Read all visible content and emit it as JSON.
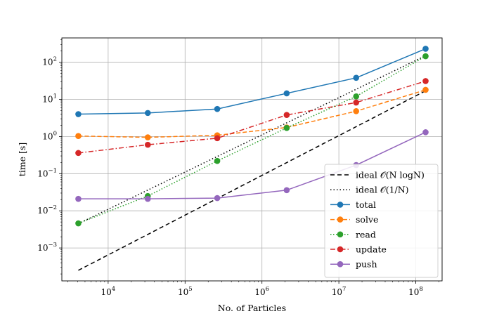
{
  "chart_data": {
    "type": "line",
    "title": "",
    "xlabel": "No. of Particles",
    "ylabel": "time [s]",
    "xscale": "log",
    "yscale": "log",
    "xlim": [
      2500,
      220000000
    ],
    "ylim": [
      0.00013,
      450
    ],
    "x_ticks": [
      {
        "value": 10000,
        "base": "10",
        "exp": "4"
      },
      {
        "value": 100000,
        "base": "10",
        "exp": "5"
      },
      {
        "value": 1000000,
        "base": "10",
        "exp": "6"
      },
      {
        "value": 10000000,
        "base": "10",
        "exp": "7"
      },
      {
        "value": 100000000,
        "base": "10",
        "exp": "8"
      }
    ],
    "y_ticks": [
      {
        "value": 0.001,
        "base": "10",
        "exp": "−3"
      },
      {
        "value": 0.01,
        "base": "10",
        "exp": "−2"
      },
      {
        "value": 0.1,
        "base": "10",
        "exp": "−1"
      },
      {
        "value": 1,
        "base": "10",
        "exp": "0"
      },
      {
        "value": 10,
        "base": "10",
        "exp": "1"
      },
      {
        "value": 100,
        "base": "10",
        "exp": "2"
      }
    ],
    "grid": true,
    "legend_position": "lower-right",
    "x": [
      4096,
      32768,
      262144,
      2097152,
      16777216,
      134217728
    ],
    "series": [
      {
        "name": "ideal 𝒪(N logN)",
        "color": "#000000",
        "dash": "6,4",
        "marker": false,
        "x": [
          4096,
          134217728
        ],
        "values": [
          0.00025,
          17
        ]
      },
      {
        "name": "ideal 𝒪(1/N)",
        "color": "#000000",
        "dash": "1.5,3",
        "marker": false,
        "x": [
          4096,
          134217728
        ],
        "values": [
          0.0045,
          150
        ]
      },
      {
        "name": "total",
        "color": "#1f77b4",
        "dash": "",
        "marker": true,
        "values": [
          4.0,
          4.3,
          5.5,
          14.5,
          38,
          230
        ]
      },
      {
        "name": "solve",
        "color": "#ff7f0e",
        "dash": "6,3",
        "marker": true,
        "values": [
          1.03,
          0.95,
          1.08,
          1.75,
          4.8,
          18
        ]
      },
      {
        "name": "read",
        "color": "#2ca02c",
        "dash": "1.5,2.5",
        "marker": true,
        "values": [
          0.0046,
          0.025,
          0.22,
          1.7,
          12,
          145
        ]
      },
      {
        "name": "update",
        "color": "#d62728",
        "dash": "7,3,1.5,3",
        "marker": true,
        "values": [
          0.36,
          0.6,
          0.9,
          3.8,
          8.2,
          31
        ]
      },
      {
        "name": "push",
        "color": "#9467bd",
        "dash": "",
        "marker": true,
        "values": [
          0.021,
          0.021,
          0.022,
          0.036,
          0.17,
          1.3
        ]
      }
    ]
  }
}
